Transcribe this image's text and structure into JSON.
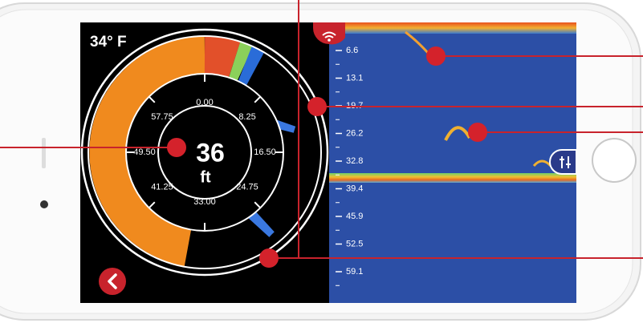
{
  "screen": {
    "temperature": "34° F",
    "flasher": {
      "ring_labels": [
        "0.00",
        "8.25",
        "16.50",
        "24.75",
        "33.00",
        "41.25",
        "49.50",
        "57.75"
      ],
      "depth": "36",
      "unit": "ft"
    },
    "sonar": {
      "depth_labels": [
        "6.6",
        "13.1",
        "19.7",
        "26.2",
        "32.8",
        "39.4",
        "45.9",
        "52.5",
        "59.1"
      ]
    }
  }
}
